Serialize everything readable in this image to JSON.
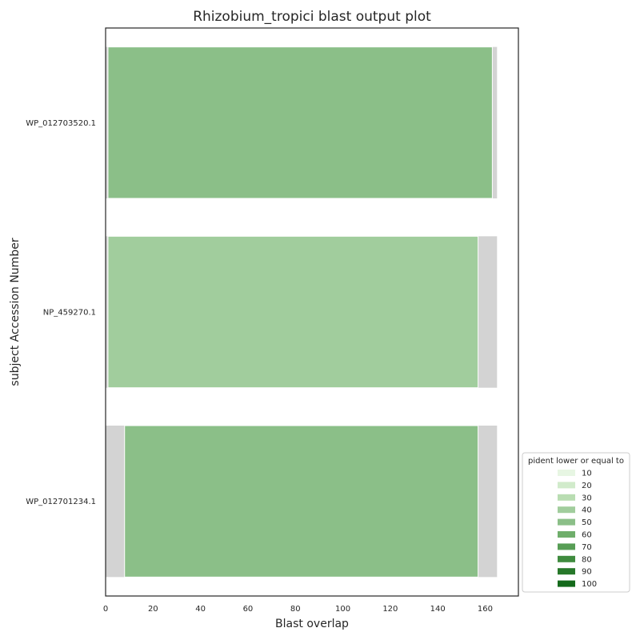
{
  "chart_data": {
    "type": "bar",
    "orientation": "horizontal",
    "title": "Rhizobium_tropici blast output plot",
    "xlabel": "Blast overlap",
    "ylabel": "subject Accession Number",
    "xlim": [
      0,
      174
    ],
    "xticks": [
      0,
      20,
      40,
      60,
      80,
      100,
      120,
      140,
      160
    ],
    "grid": false,
    "subject_length_color": "#d3d3d3",
    "categories": [
      "WP_012703520.1",
      "NP_459270.1",
      "WP_012701234.1"
    ],
    "subject_length": [
      165,
      165,
      165
    ],
    "alignment_start": [
      1,
      1,
      8
    ],
    "alignment_end": [
      163,
      157,
      157
    ],
    "alignment_colors": [
      "#8bbf88",
      "#a1cd9d",
      "#8bbf88"
    ],
    "legend": {
      "title": "pident lower or equal to",
      "placement": "lower-right, outside plot",
      "entries": [
        {
          "label": "10",
          "color": "#e7f6e3"
        },
        {
          "label": "20",
          "color": "#d1ebcb"
        },
        {
          "label": "30",
          "color": "#b9ddb2"
        },
        {
          "label": "40",
          "color": "#a1cd9d"
        },
        {
          "label": "50",
          "color": "#8bbf88"
        },
        {
          "label": "60",
          "color": "#6fae6b"
        },
        {
          "label": "70",
          "color": "#579d55"
        },
        {
          "label": "80",
          "color": "#3f8b3e"
        },
        {
          "label": "90",
          "color": "#27782a"
        },
        {
          "label": "100",
          "color": "#146a1b"
        }
      ]
    }
  }
}
